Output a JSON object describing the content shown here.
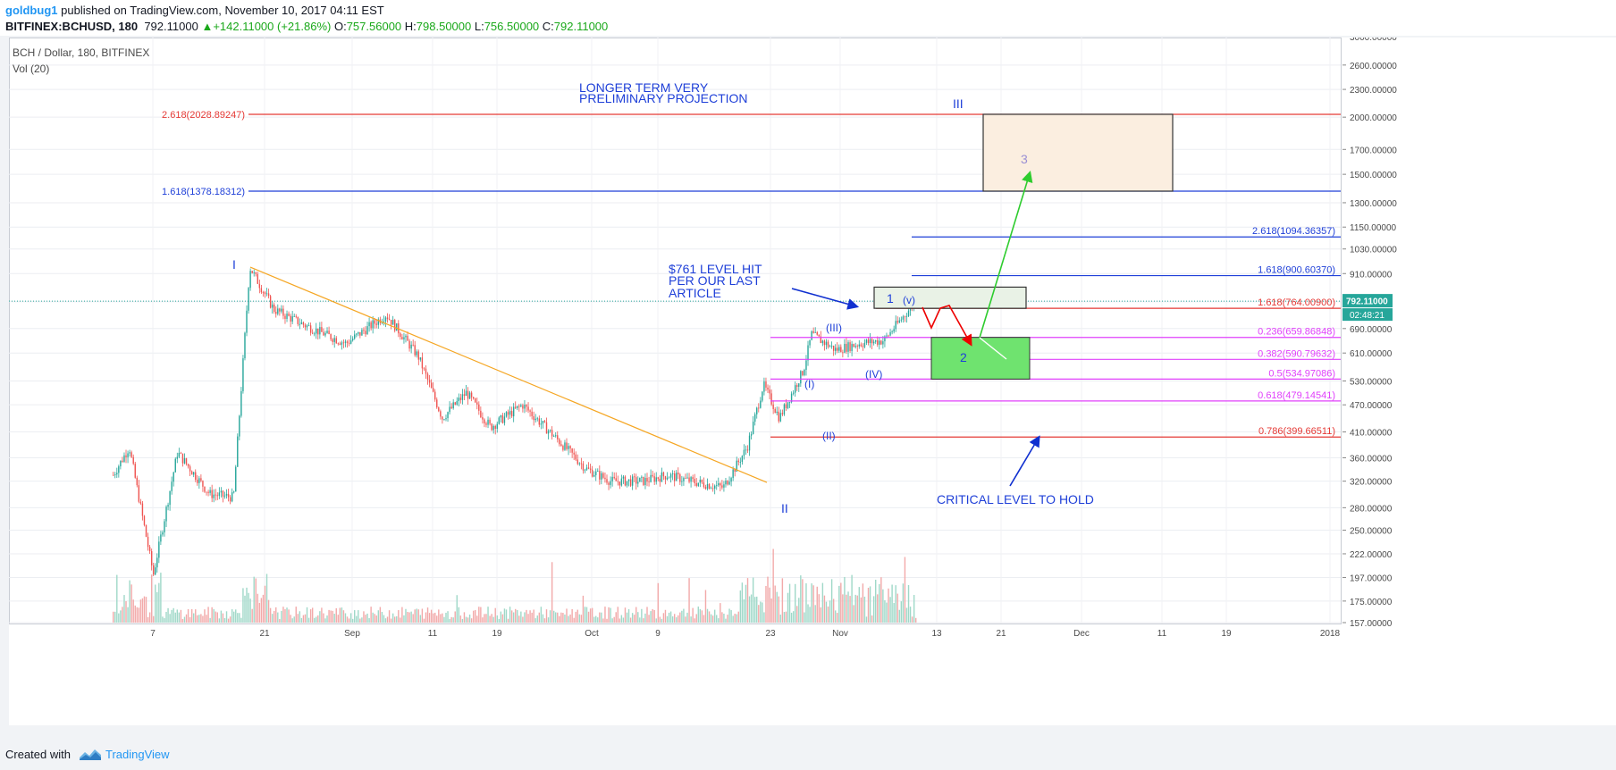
{
  "header": {
    "author": "goldbug1",
    "published": "published on TradingView.com, November 10, 2017 04:11 EST",
    "symbol": "BITFINEX:BCHUSD, 180",
    "last": "792.11000",
    "change": "+142.11000 (+21.86%)",
    "o_label": "O:",
    "o": "757.56000",
    "h_label": "H:",
    "h": "798.50000",
    "l_label": "L:",
    "l": "756.50000",
    "c_label": "C:",
    "c": "792.11000"
  },
  "footer": {
    "created_with": "Created with",
    "brand": "TradingView"
  },
  "chart_data": {
    "type": "candlestick",
    "title": "BCH / Dollar, 180, BITFINEX",
    "volume_label": "Vol (20)",
    "y_scale": "log",
    "ylim": [
      157,
      3000
    ],
    "y_ticks": [
      "3000.00000",
      "2600.00000",
      "2300.00000",
      "2000.00000",
      "1700.00000",
      "1500.00000",
      "1300.00000",
      "1150.00000",
      "1030.00000",
      "910.00000",
      "790.00000",
      "690.00000",
      "610.00000",
      "530.00000",
      "470.00000",
      "410.00000",
      "360.00000",
      "320.00000",
      "280.00000",
      "250.00000",
      "222.00000",
      "197.00000",
      "175.00000",
      "157.00000"
    ],
    "x_ticks": [
      "7",
      "21",
      "Sep",
      "11",
      "19",
      "Oct",
      "9",
      "23",
      "Nov",
      "13",
      "21",
      "Dec",
      "11",
      "19",
      "2018"
    ],
    "price_label": "792.11000",
    "countdown_label": "02:48:21",
    "current_price": 792.11,
    "colors": {
      "up": "#26a69a",
      "down": "#ef5350",
      "red_fib": "#e53935",
      "blue_fib": "#1e3fd8",
      "magenta_fib": "#e040fb",
      "trendline": "#f5a623"
    },
    "price_path": [
      {
        "x": 0,
        "y": 330
      },
      {
        "x": 0.02,
        "y": 380
      },
      {
        "x": 0.05,
        "y": 200
      },
      {
        "x": 0.08,
        "y": 370
      },
      {
        "x": 0.12,
        "y": 300
      },
      {
        "x": 0.15,
        "y": 295
      },
      {
        "x": 0.17,
        "y": 940
      },
      {
        "x": 0.2,
        "y": 760
      },
      {
        "x": 0.24,
        "y": 700
      },
      {
        "x": 0.29,
        "y": 640
      },
      {
        "x": 0.34,
        "y": 740
      },
      {
        "x": 0.38,
        "y": 600
      },
      {
        "x": 0.41,
        "y": 440
      },
      {
        "x": 0.44,
        "y": 500
      },
      {
        "x": 0.47,
        "y": 420
      },
      {
        "x": 0.51,
        "y": 470
      },
      {
        "x": 0.55,
        "y": 400
      },
      {
        "x": 0.59,
        "y": 340
      },
      {
        "x": 0.62,
        "y": 320
      },
      {
        "x": 0.66,
        "y": 320
      },
      {
        "x": 0.69,
        "y": 330
      },
      {
        "x": 0.72,
        "y": 320
      },
      {
        "x": 0.76,
        "y": 310
      },
      {
        "x": 0.79,
        "y": 380
      },
      {
        "x": 0.81,
        "y": 520
      },
      {
        "x": 0.83,
        "y": 440
      },
      {
        "x": 0.86,
        "y": 560
      },
      {
        "x": 0.87,
        "y": 670
      },
      {
        "x": 0.9,
        "y": 620
      },
      {
        "x": 0.93,
        "y": 640
      },
      {
        "x": 0.96,
        "y": 650
      },
      {
        "x": 1.0,
        "y": 792
      }
    ],
    "fib_levels": [
      {
        "label": "2.618(2028.89247)",
        "value": 2028.89,
        "color": "red"
      },
      {
        "label": "1.618(1378.18312)",
        "value": 1378.18,
        "color": "blue"
      },
      {
        "label": "2.618(1094.36357)",
        "value": 1094.36,
        "color": "blue"
      },
      {
        "label": "1.618(900.60370)",
        "value": 900.6,
        "color": "blue"
      },
      {
        "label": "1.618(764.00900)",
        "value": 764.01,
        "color": "red"
      },
      {
        "label": "0.236(659.86848)",
        "value": 659.87,
        "color": "magenta"
      },
      {
        "label": "0.382(590.79632)",
        "value": 590.8,
        "color": "magenta"
      },
      {
        "label": "0.5(534.97086)",
        "value": 534.97,
        "color": "magenta"
      },
      {
        "label": "0.618(479.14541)",
        "value": 479.15,
        "color": "magenta"
      },
      {
        "label": "0.786(399.66511)",
        "value": 399.67,
        "color": "red"
      }
    ],
    "annotations": {
      "projection": [
        "LONGER TERM VERY",
        "PRELIMINARY PROJECTION"
      ],
      "level_hit": [
        "$761 LEVEL HIT",
        "PER OUR LAST",
        "ARTICLE"
      ],
      "critical": "CRITICAL LEVEL TO HOLD",
      "wave_I": "I",
      "wave_II": "II",
      "wave_III": "III",
      "wave_1": "1",
      "wave_2": "2",
      "wave_3": "3",
      "wave_i": "(I)",
      "wave_ii": "(II)",
      "wave_iii": "(III)",
      "wave_iv": "(IV)",
      "wave_v": "(v)"
    }
  }
}
